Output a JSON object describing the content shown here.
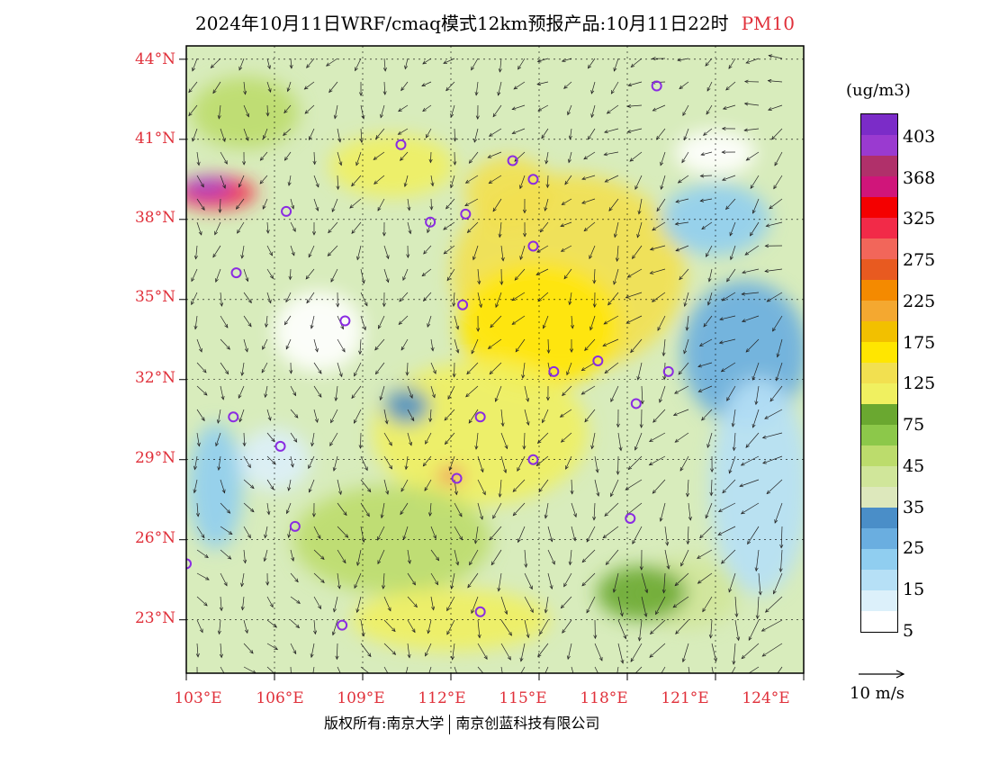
{
  "title": {
    "text": "2024年10月11日WRF/cmaq模式12km预报产品:10月11日22时",
    "pollutant": "PM10"
  },
  "axes": {
    "lat_labels": [
      "44°N",
      "41°N",
      "38°N",
      "35°N",
      "32°N",
      "29°N",
      "26°N",
      "23°N"
    ],
    "lon_labels": [
      "103°E",
      "106°E",
      "109°E",
      "112°E",
      "115°E",
      "118°E",
      "121°E",
      "124°E"
    ],
    "lat_range": [
      21,
      44.5
    ],
    "lon_range": [
      103,
      124
    ]
  },
  "legend": {
    "unit": "(ug/m3)",
    "labels": [
      "403",
      "368",
      "325",
      "275",
      "225",
      "175",
      "125",
      "75",
      "45",
      "35",
      "25",
      "15",
      "5"
    ],
    "colors": [
      "#7b2cc8",
      "#9a3ad0",
      "#b0306a",
      "#d0157a",
      "#f40000",
      "#f22a48",
      "#f2665a",
      "#e85a20",
      "#f48a00",
      "#f4a830",
      "#f2c000",
      "#ffe600",
      "#f2e050",
      "#f0f060",
      "#6aa830",
      "#8cc84a",
      "#bcdc6c",
      "#d0e69a",
      "#dde8bc",
      "#4a8ec8",
      "#6aaee0",
      "#90cef0",
      "#b6e0f6",
      "#dcf0fa",
      "#ffffff"
    ]
  },
  "wind_reference": "10 m/s",
  "copyright": {
    "left": "版权所有:南京大学",
    "right": "南京创蓝科技有限公司"
  },
  "stations": [
    {
      "lon": 119.0,
      "lat": 43.0
    },
    {
      "lon": 110.3,
      "lat": 40.8
    },
    {
      "lon": 114.1,
      "lat": 40.2
    },
    {
      "lon": 114.8,
      "lat": 39.5
    },
    {
      "lon": 106.4,
      "lat": 38.3
    },
    {
      "lon": 111.3,
      "lat": 37.9
    },
    {
      "lon": 112.5,
      "lat": 38.2
    },
    {
      "lon": 114.8,
      "lat": 37.0
    },
    {
      "lon": 104.7,
      "lat": 36.0
    },
    {
      "lon": 112.4,
      "lat": 34.8
    },
    {
      "lon": 108.4,
      "lat": 34.2
    },
    {
      "lon": 117.0,
      "lat": 32.7
    },
    {
      "lon": 115.5,
      "lat": 32.3
    },
    {
      "lon": 119.4,
      "lat": 32.3
    },
    {
      "lon": 118.3,
      "lat": 31.1
    },
    {
      "lon": 104.6,
      "lat": 30.6
    },
    {
      "lon": 113.0,
      "lat": 30.6
    },
    {
      "lon": 106.2,
      "lat": 29.5
    },
    {
      "lon": 114.8,
      "lat": 29.0
    },
    {
      "lon": 112.2,
      "lat": 28.3
    },
    {
      "lon": 106.7,
      "lat": 26.5
    },
    {
      "lon": 118.1,
      "lat": 26.8
    },
    {
      "lon": 103.0,
      "lat": 25.1
    },
    {
      "lon": 113.0,
      "lat": 23.3
    },
    {
      "lon": 108.3,
      "lat": 22.8
    }
  ]
}
